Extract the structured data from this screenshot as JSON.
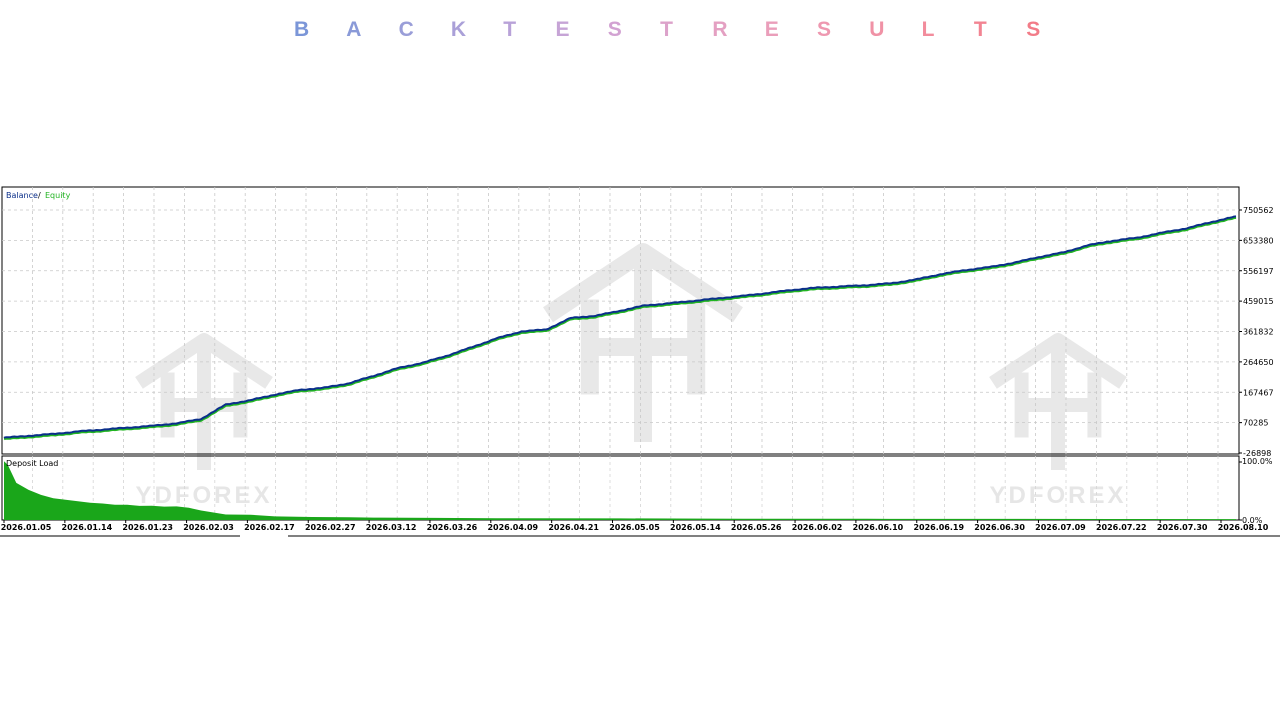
{
  "page": {
    "title_letters": [
      "B",
      "A",
      "C",
      "K",
      "T",
      "E",
      "S",
      "T",
      "R",
      "E",
      "S",
      "U",
      "L",
      "T",
      "S"
    ],
    "title_colors": [
      "#7b96d8",
      "#8a9ad8",
      "#9a9ed8",
      "#aaa0d8",
      "#b8a2d8",
      "#c6a4d6",
      "#d2a2d2",
      "#dca2ca",
      "#e4a0c2",
      "#ea9eba",
      "#ee98b0",
      "#f092a6",
      "#f28c9c",
      "#f28492",
      "#f27c88"
    ]
  },
  "watermark": {
    "text": "YDFOREX",
    "color": "#e6e6e6"
  },
  "chart_data": [
    {
      "type": "line",
      "legend": {
        "series1": "Balance",
        "sep": " / ",
        "series2": "Equity",
        "placement": "top-left"
      },
      "series": [
        {
          "name": "Balance",
          "color": "#0b2f8a"
        },
        {
          "name": "Equity",
          "color": "#22b422"
        }
      ],
      "y_ticks": [
        "750562",
        "653380",
        "556197",
        "459015",
        "361832",
        "264650",
        "167467",
        "70285",
        "-26898"
      ],
      "ylim": [
        -26898,
        750562
      ],
      "x_labels": [
        "2026.01.05",
        "2026.01.14",
        "2026.01.23",
        "2026.02.03",
        "2026.02.17",
        "2026.02.27",
        "2026.03.12",
        "2026.03.26",
        "2026.04.09",
        "2026.04.21",
        "2026.05.05",
        "2026.05.14",
        "2026.05.26",
        "2026.06.02",
        "2026.06.10",
        "2026.06.19",
        "2026.06.30",
        "2026.07.09",
        "2026.07.22",
        "2026.07.30",
        "2026.08.10"
      ],
      "x": [
        0,
        2,
        4,
        6,
        8,
        10,
        12,
        14,
        16,
        18,
        20,
        22,
        24,
        26,
        28,
        30,
        32,
        34,
        36,
        38,
        40,
        42,
        44,
        46,
        48,
        50,
        52,
        54,
        56,
        58,
        60,
        62,
        64,
        66,
        68,
        70,
        72,
        74,
        76,
        78,
        80,
        82,
        84,
        86,
        88,
        90,
        92,
        94,
        96,
        98,
        100
      ],
      "values": [
        22000,
        28000,
        34000,
        42000,
        48000,
        54000,
        60000,
        68000,
        82000,
        128000,
        142000,
        160000,
        175000,
        182000,
        196000,
        220000,
        245000,
        262000,
        285000,
        312000,
        340000,
        362000,
        368000,
        405000,
        412000,
        428000,
        445000,
        452000,
        460000,
        468000,
        476000,
        485000,
        495000,
        502000,
        506000,
        510000,
        516000,
        528000,
        545000,
        558000,
        568000,
        582000,
        600000,
        615000,
        638000,
        652000,
        662000,
        678000,
        692000,
        712000,
        730000
      ],
      "grid": true
    },
    {
      "type": "area",
      "legend_title": "Deposit Load",
      "y_ticks": [
        "100.0%",
        "0.0%"
      ],
      "ylim": [
        0,
        100
      ],
      "color": "#1aa61a",
      "x": [
        0,
        0.3,
        1,
        2,
        3,
        4,
        5,
        6,
        7,
        8,
        9,
        10,
        11,
        12,
        13,
        14,
        15,
        16,
        18,
        20,
        22,
        25,
        28,
        30,
        35,
        40,
        50,
        60,
        70,
        80,
        90,
        100
      ],
      "values": [
        98,
        92,
        62,
        50,
        42,
        36,
        34,
        31,
        29,
        27,
        26,
        25,
        24,
        23,
        23,
        22,
        21,
        15,
        10,
        8,
        6,
        5,
        4.5,
        4,
        3.5,
        3,
        2.6,
        2.2,
        2,
        1.8,
        1.6,
        1.5
      ]
    }
  ]
}
